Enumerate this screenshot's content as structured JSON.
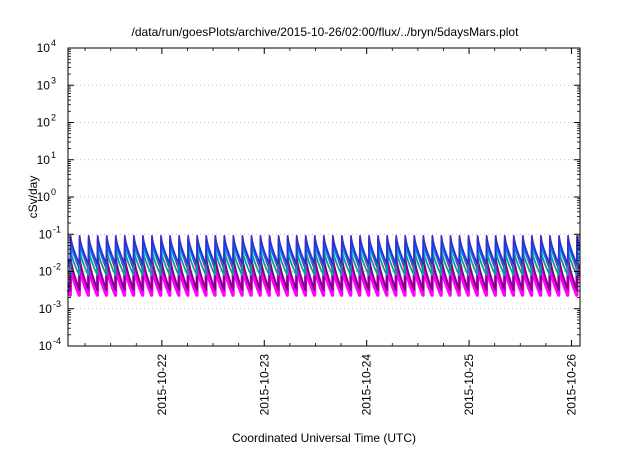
{
  "chart_data": {
    "type": "line",
    "title": "/data/run/goesPlots/archive/2015-10-26/02:00/flux/../bryn/5daysMars.plot",
    "xlabel": "Coordinated Universal Time (UTC)",
    "ylabel": "cSv/day",
    "y_scale": "log",
    "ylim_exponents": [
      -4,
      4
    ],
    "y_tick_base": "10",
    "y_tick_exponents": [
      "-4",
      "-3",
      "-2",
      "-1",
      "0",
      "1",
      "2",
      "3",
      "4"
    ],
    "xlim": [
      "2015-10-21 02:00",
      "2015-10-26 02:00"
    ],
    "x_tick_labels": [
      "2015-10-22",
      "2015-10-23",
      "2015-10-24",
      "2015-10-25",
      "2015-10-26"
    ],
    "grid": "dotted horizontal at decades",
    "legend": "none",
    "sawtooth_period_hours": 2.12,
    "series": [
      {
        "color": "#ff00ff",
        "peak": 0.015,
        "trough": 0.0023
      },
      {
        "color": "#800080",
        "peak": 0.025,
        "trough": 0.0032
      },
      {
        "color": "#d00000",
        "peak": 0.075,
        "trough": 0.012
      },
      {
        "color": "#00a0a0",
        "peak": 0.04,
        "trough": 0.008
      },
      {
        "color": "#0080ff",
        "peak": 0.06,
        "trough": 0.014
      },
      {
        "color": "#3030d0",
        "peak": 0.09,
        "trough": 0.016
      }
    ]
  }
}
